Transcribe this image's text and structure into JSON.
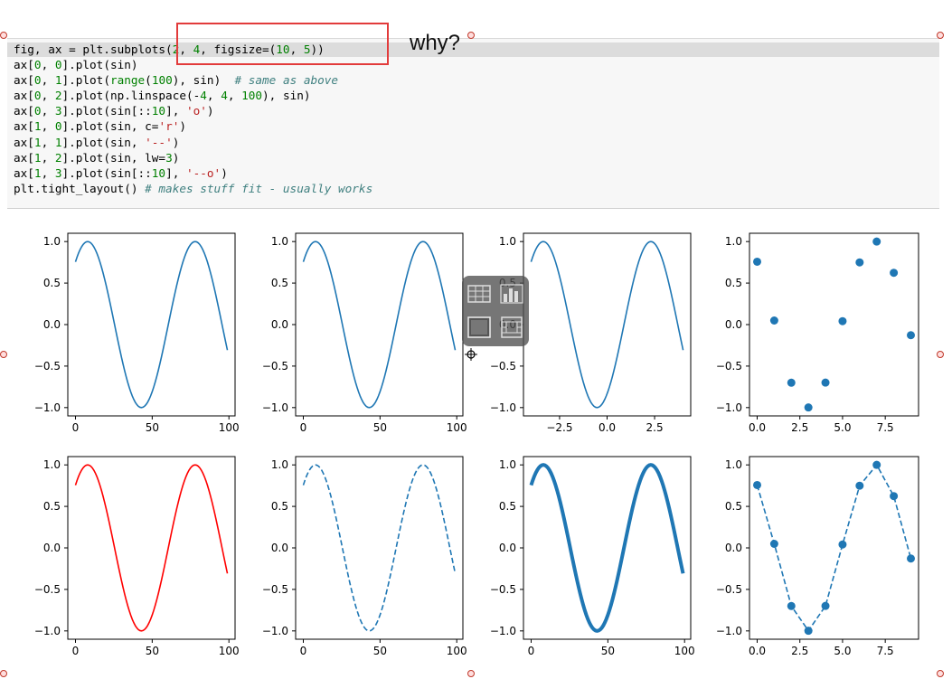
{
  "code_cell": {
    "lines": [
      "fig, ax = plt.subplots(2, 4, figsize=(10, 5))",
      "ax[0, 0].plot(sin)",
      "ax[0, 1].plot(range(100), sin)  # same as above",
      "ax[0, 2].plot(np.linspace(-4, 4, 100), sin)",
      "ax[0, 3].plot(sin[::10], 'o')",
      "ax[1, 0].plot(sin, c='r')",
      "ax[1, 1].plot(sin, '--')",
      "ax[1, 2].plot(sin, lw=3)",
      "ax[1, 3].plot(sin[::10], '--o')",
      "plt.tight_layout() # makes stuff fit - usually works"
    ]
  },
  "annotation": {
    "text": "why?",
    "box_color": "#e23b3b"
  },
  "colors": {
    "default_line": "#1f77b4",
    "red_line": "#ff0000"
  },
  "chart_data": [
    {
      "type": "line",
      "x": "range(100)",
      "y": "sin",
      "style": "solid",
      "color": "#1f77b4",
      "xticks": [
        "0",
        "50",
        "100"
      ],
      "yticks": [
        "1.0",
        "0.5",
        "0.0",
        "−0.5",
        "−1.0"
      ],
      "xlim": [
        -5,
        104
      ],
      "ylim": [
        -1.1,
        1.1
      ]
    },
    {
      "type": "line",
      "x": "range(100)",
      "y": "sin",
      "style": "solid",
      "color": "#1f77b4",
      "xticks": [
        "0",
        "50",
        "100"
      ],
      "yticks": [
        "1.0",
        "0.5",
        "0.0",
        "−0.5",
        "−1.0"
      ],
      "xlim": [
        -5,
        104
      ],
      "ylim": [
        -1.1,
        1.1
      ]
    },
    {
      "type": "line",
      "x": "linspace(-4, 4, 100)",
      "y": "sin",
      "style": "solid",
      "color": "#1f77b4",
      "xticks": [
        "−2.5",
        "0.0",
        "2.5"
      ],
      "yticks": [
        "1.0",
        "0.5",
        "0.0",
        "−0.5",
        "−1.0"
      ],
      "xlim": [
        -4.4,
        4.4
      ],
      "ylim": [
        -1.1,
        1.1
      ]
    },
    {
      "type": "scatter",
      "x": [
        0,
        1,
        2,
        3,
        4,
        5,
        6,
        7,
        8,
        9
      ],
      "y": [
        0.757,
        0.049,
        -0.7,
        -0.998,
        -0.699,
        0.041,
        0.749,
        1.0,
        0.624,
        -0.128
      ],
      "color": "#1f77b4",
      "xticks": [
        "0.0",
        "2.5",
        "5.0",
        "7.5"
      ],
      "yticks": [
        "1.0",
        "0.5",
        "0.0",
        "−0.5",
        "−1.0"
      ],
      "xlim": [
        -0.45,
        9.45
      ],
      "ylim": [
        -1.1,
        1.1
      ]
    },
    {
      "type": "line",
      "x": "range(100)",
      "y": "sin",
      "style": "solid",
      "color": "#ff0000",
      "xticks": [
        "0",
        "50",
        "100"
      ],
      "yticks": [
        "1.0",
        "0.5",
        "0.0",
        "−0.5",
        "−1.0"
      ],
      "xlim": [
        -5,
        104
      ],
      "ylim": [
        -1.1,
        1.1
      ]
    },
    {
      "type": "line",
      "x": "range(100)",
      "y": "sin",
      "style": "dashed",
      "color": "#1f77b4",
      "xticks": [
        "0",
        "50",
        "100"
      ],
      "yticks": [
        "1.0",
        "0.5",
        "0.0",
        "−0.5",
        "−1.0"
      ],
      "xlim": [
        -5,
        104
      ],
      "ylim": [
        -1.1,
        1.1
      ]
    },
    {
      "type": "line",
      "x": "range(100)",
      "y": "sin",
      "style": "thick",
      "color": "#1f77b4",
      "xticks": [
        "0",
        "50",
        "100"
      ],
      "yticks": [
        "1.0",
        "0.5",
        "0.0",
        "−0.5",
        "−1.0"
      ],
      "xlim": [
        -5,
        104
      ],
      "ylim": [
        -1.1,
        1.1
      ]
    },
    {
      "type": "line",
      "x": [
        0,
        1,
        2,
        3,
        4,
        5,
        6,
        7,
        8,
        9
      ],
      "y": [
        0.757,
        0.049,
        -0.7,
        -0.998,
        -0.699,
        0.041,
        0.749,
        1.0,
        0.624,
        -0.128
      ],
      "style": "dashed-markers",
      "color": "#1f77b4",
      "xticks": [
        "0.0",
        "2.5",
        "5.0",
        "7.5"
      ],
      "yticks": [
        "1.0",
        "0.5",
        "0.0",
        "−0.5",
        "−1.0"
      ],
      "xlim": [
        -0.45,
        9.45
      ],
      "ylim": [
        -1.1,
        1.1
      ]
    }
  ]
}
